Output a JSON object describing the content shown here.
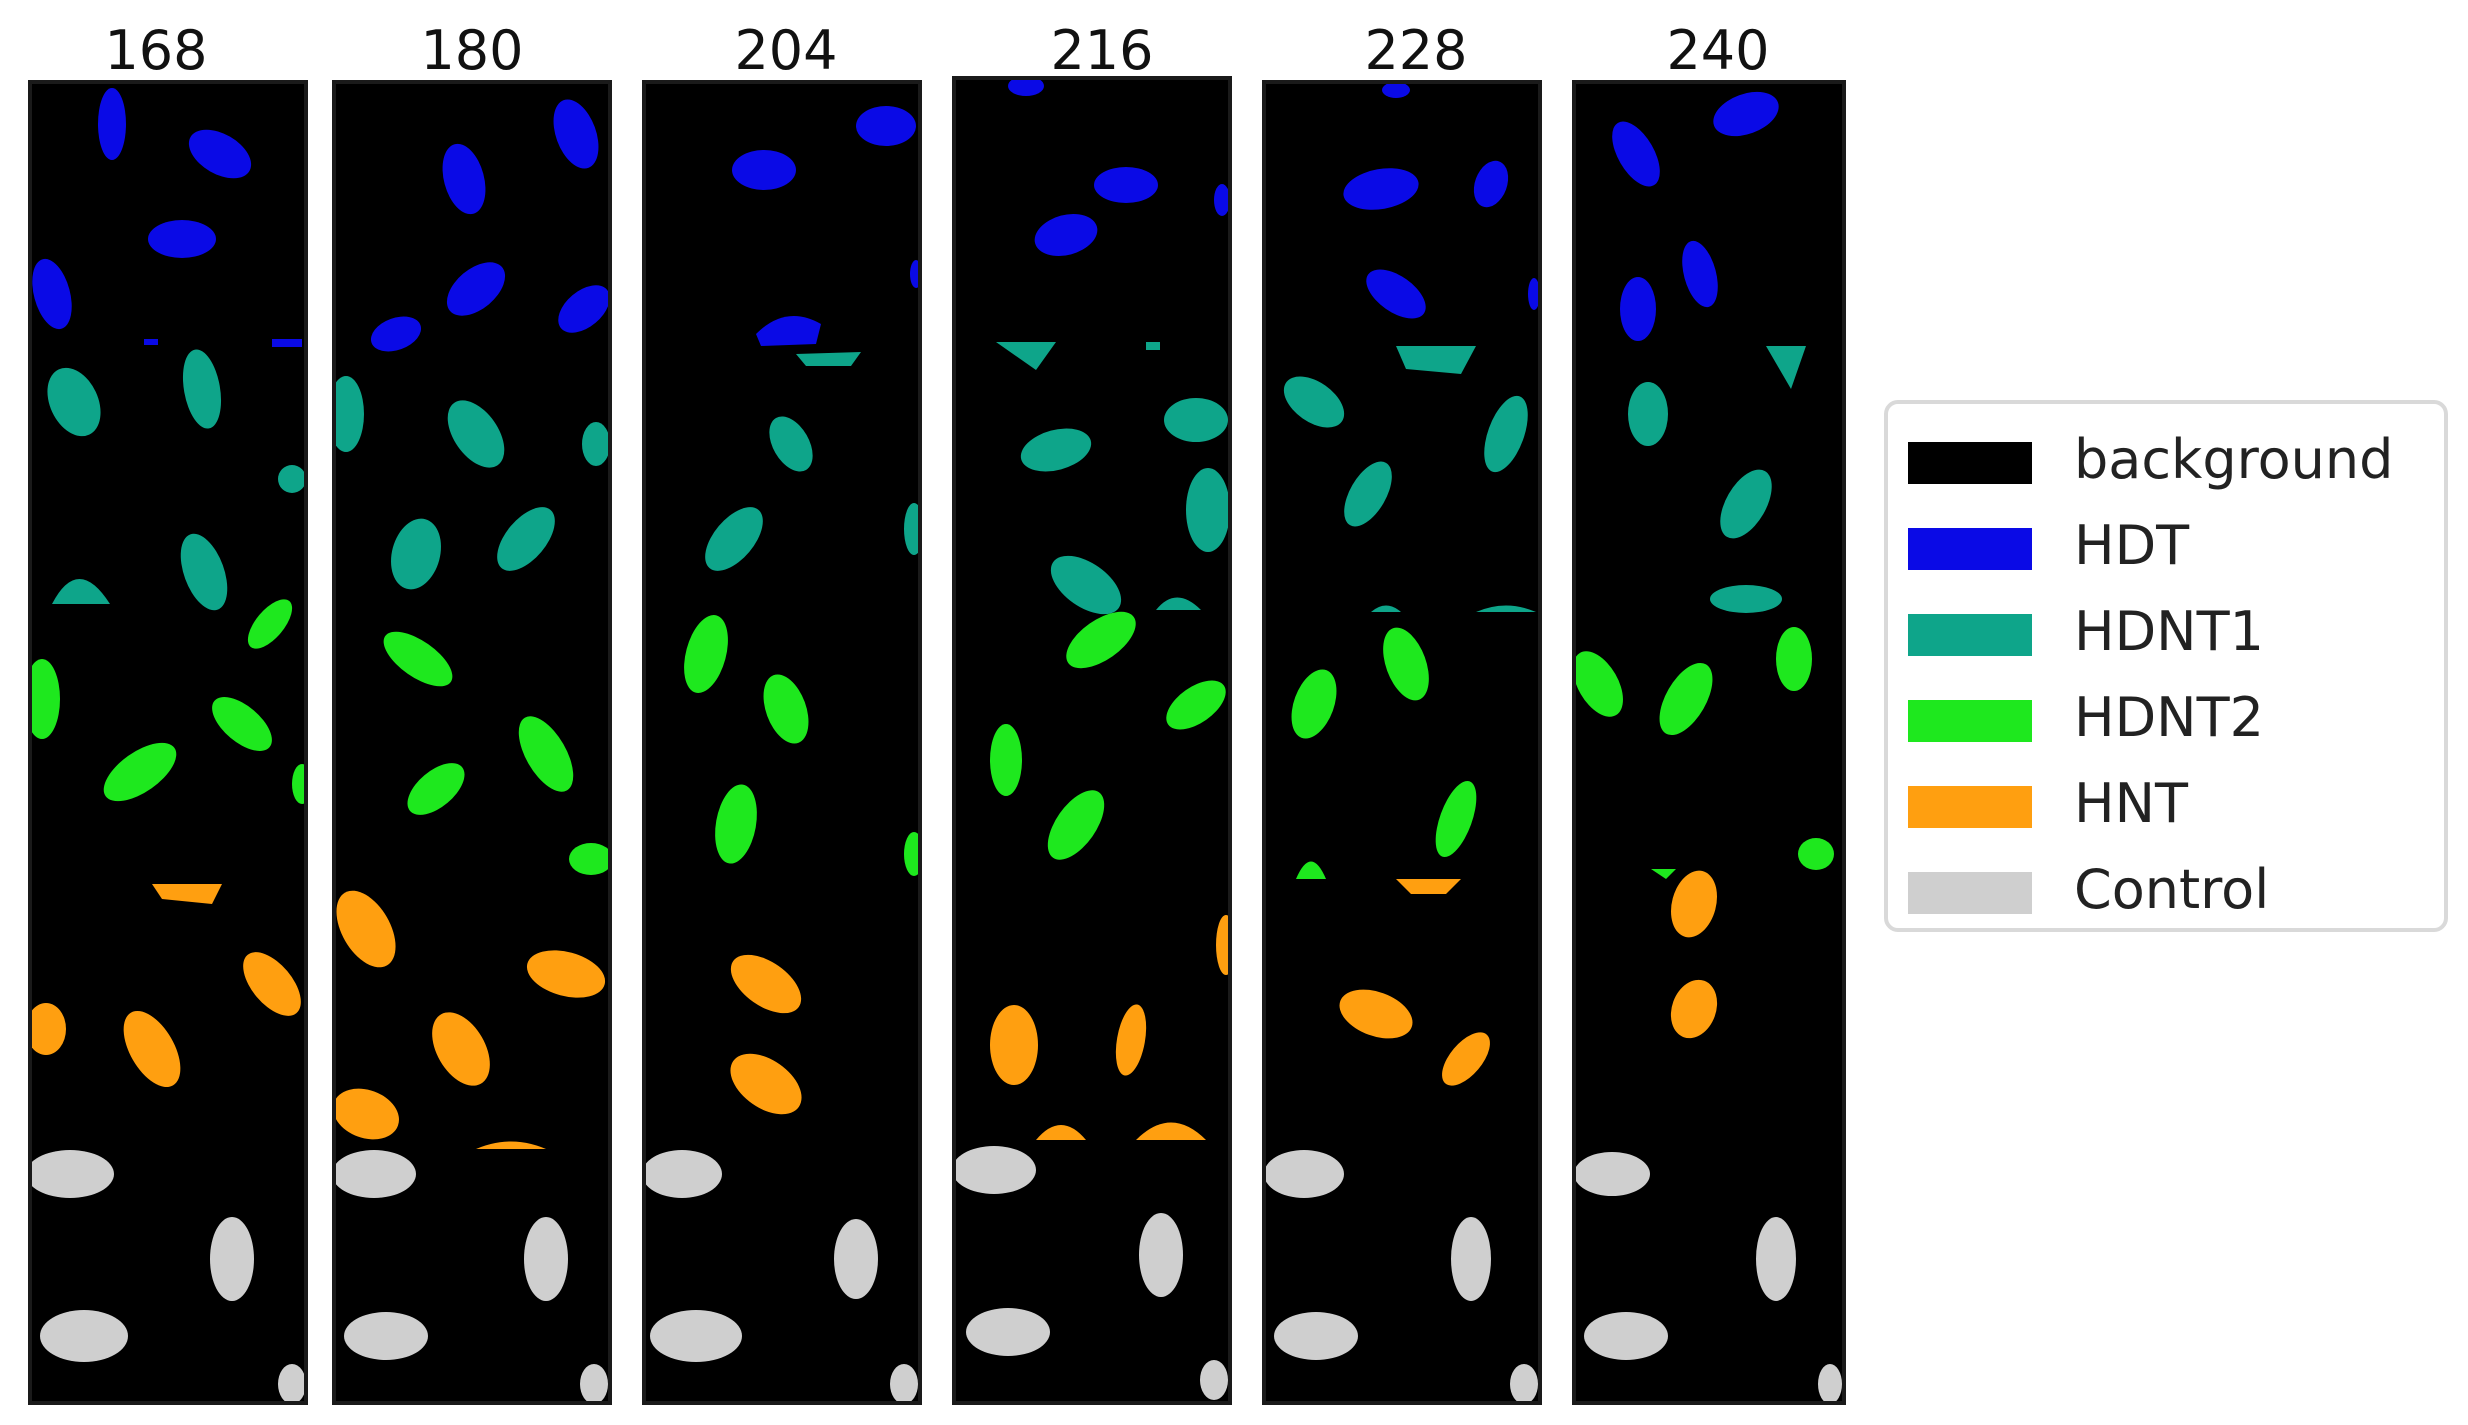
{
  "panels": [
    {
      "title": "168"
    },
    {
      "title": "180"
    },
    {
      "title": "204"
    },
    {
      "title": "216"
    },
    {
      "title": "228"
    },
    {
      "title": "240"
    }
  ],
  "legend": {
    "items": [
      {
        "label": "background",
        "color": "#000000"
      },
      {
        "label": "HDT",
        "color": "#0a0ae6"
      },
      {
        "label": "HDNT1",
        "color": "#0ea58a"
      },
      {
        "label": "HDNT2",
        "color": "#1ee81e"
      },
      {
        "label": "HNT",
        "color": "#ff9f10"
      },
      {
        "label": "Control",
        "color": "#cfcfcf"
      }
    ]
  }
}
